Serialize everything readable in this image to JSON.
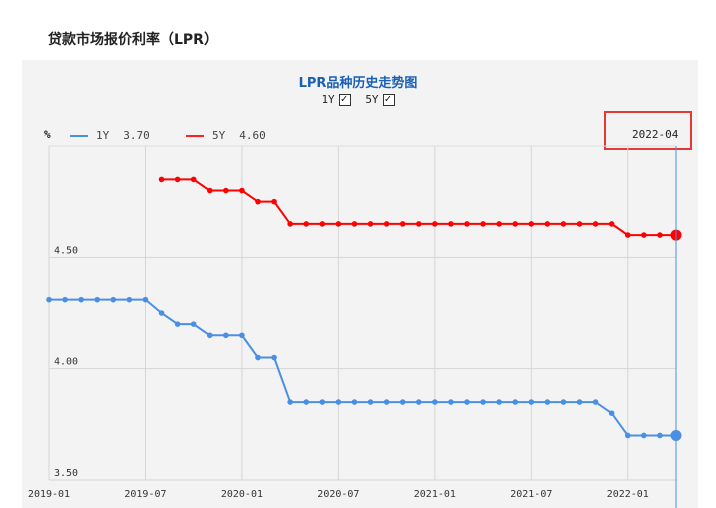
{
  "page": {
    "title": "贷款市场报价利率（LPR）"
  },
  "chart_header": {
    "title": "LPR品种历史走势图",
    "toggles": [
      {
        "label": "1Y",
        "checked": true
      },
      {
        "label": "5Y",
        "checked": true
      }
    ],
    "unit": "%",
    "legend": [
      {
        "name": "1Y",
        "value": "3.70",
        "color": "#4a90e2"
      },
      {
        "name": "5Y",
        "value": "4.60",
        "color": "#ff2020"
      }
    ],
    "cursor_date": "2022-04"
  },
  "chart_data": {
    "type": "line",
    "ylim": [
      3.5,
      5.0
    ],
    "yticks": [
      {
        "value": 3.5,
        "label": "3.50"
      },
      {
        "value": 4.0,
        "label": "4.00"
      },
      {
        "value": 4.5,
        "label": "4.50"
      }
    ],
    "xticks": [
      "2019-01",
      "2019-07",
      "2020-01",
      "2020-07",
      "2021-01",
      "2021-07",
      "2022-01"
    ],
    "x": [
      "2019-01",
      "2019-02",
      "2019-03",
      "2019-04",
      "2019-05",
      "2019-06",
      "2019-07",
      "2019-08",
      "2019-09",
      "2019-10",
      "2019-11",
      "2019-12",
      "2020-01",
      "2020-02",
      "2020-03",
      "2020-04",
      "2020-05",
      "2020-06",
      "2020-07",
      "2020-08",
      "2020-09",
      "2020-10",
      "2020-11",
      "2020-12",
      "2021-01",
      "2021-02",
      "2021-03",
      "2021-04",
      "2021-05",
      "2021-06",
      "2021-07",
      "2021-08",
      "2021-09",
      "2021-10",
      "2021-11",
      "2021-12",
      "2022-01",
      "2022-02",
      "2022-03",
      "2022-04"
    ],
    "series": [
      {
        "name": "1Y",
        "color": "#4a90e2",
        "values": [
          4.31,
          4.31,
          4.31,
          4.31,
          4.31,
          4.31,
          4.31,
          4.25,
          4.2,
          4.2,
          4.15,
          4.15,
          4.15,
          4.05,
          4.05,
          3.85,
          3.85,
          3.85,
          3.85,
          3.85,
          3.85,
          3.85,
          3.85,
          3.85,
          3.85,
          3.85,
          3.85,
          3.85,
          3.85,
          3.85,
          3.85,
          3.85,
          3.85,
          3.85,
          3.85,
          3.8,
          3.7,
          3.7,
          3.7,
          3.7
        ]
      },
      {
        "name": "5Y",
        "color": "#ff0000",
        "values": [
          null,
          null,
          null,
          null,
          null,
          null,
          null,
          4.85,
          4.85,
          4.85,
          4.8,
          4.8,
          4.8,
          4.75,
          4.75,
          4.65,
          4.65,
          4.65,
          4.65,
          4.65,
          4.65,
          4.65,
          4.65,
          4.65,
          4.65,
          4.65,
          4.65,
          4.65,
          4.65,
          4.65,
          4.65,
          4.65,
          4.65,
          4.65,
          4.65,
          4.65,
          4.6,
          4.6,
          4.6,
          4.6
        ]
      }
    ]
  }
}
